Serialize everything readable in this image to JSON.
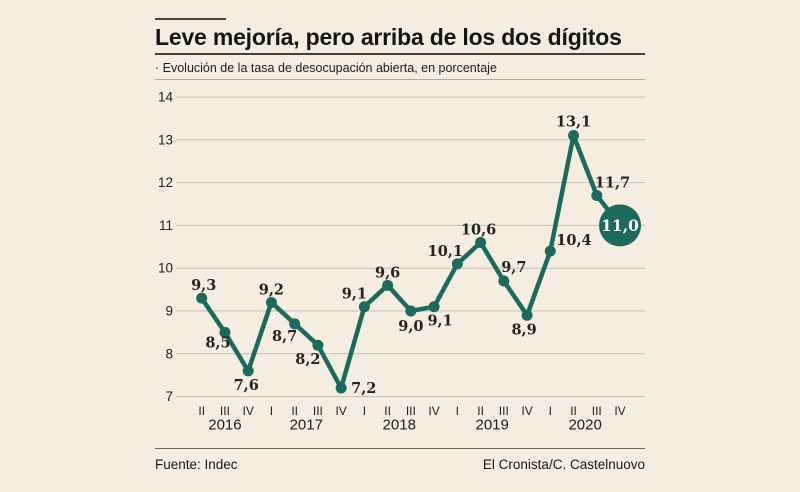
{
  "header": {
    "title": "Leve mejoría, pero arriba de los dos dígitos",
    "subtitle": "· Evolución de la tasa de desocupación abierta, en porcentaje"
  },
  "footer": {
    "source": "Fuente: Indec",
    "credit": "El Cronista/C. Castelnuovo"
  },
  "chart_data": {
    "type": "line",
    "title": "Leve mejoría, pero arriba de los dos dígitos",
    "subtitle": "Evolución de la tasa de desocupación abierta, en porcentaje",
    "ylim": [
      7,
      14
    ],
    "yticks": [
      14,
      13,
      12,
      11,
      10,
      9,
      8,
      7
    ],
    "grid": true,
    "legend_position": "none",
    "quarters": [
      "II",
      "III",
      "IV",
      "I",
      "II",
      "III",
      "IV",
      "I",
      "II",
      "III",
      "IV",
      "I",
      "II",
      "III",
      "IV",
      "I",
      "II",
      "III",
      "IV"
    ],
    "year_groups": [
      {
        "label": "2016",
        "from": 0,
        "to": 2
      },
      {
        "label": "2017",
        "from": 3,
        "to": 6
      },
      {
        "label": "2018",
        "from": 7,
        "to": 10
      },
      {
        "label": "2019",
        "from": 11,
        "to": 14
      },
      {
        "label": "2020",
        "from": 15,
        "to": 18
      }
    ],
    "values": [
      9.3,
      8.5,
      7.6,
      9.2,
      8.7,
      8.2,
      7.2,
      9.1,
      9.6,
      9.0,
      9.1,
      10.1,
      10.6,
      9.7,
      8.9,
      10.4,
      13.1,
      11.7,
      11.0
    ],
    "point_labels": [
      "9,3",
      "8,5",
      "7,6",
      "9,2",
      "8,7",
      "8,2",
      "7,2",
      "9,1",
      "9,6",
      "9,0",
      "9,1",
      "10,1",
      "10,6",
      "9,7",
      "8,9",
      "10,4",
      "13,1",
      "11,7",
      "11,0"
    ],
    "highlight": {
      "index": 18,
      "label": "11,0"
    },
    "colors": {
      "line": "#1b6a5c",
      "grid": "#c8bfad",
      "text": "#24211d",
      "background": "#f4ede0",
      "highlight_text": "#ffffff"
    }
  }
}
